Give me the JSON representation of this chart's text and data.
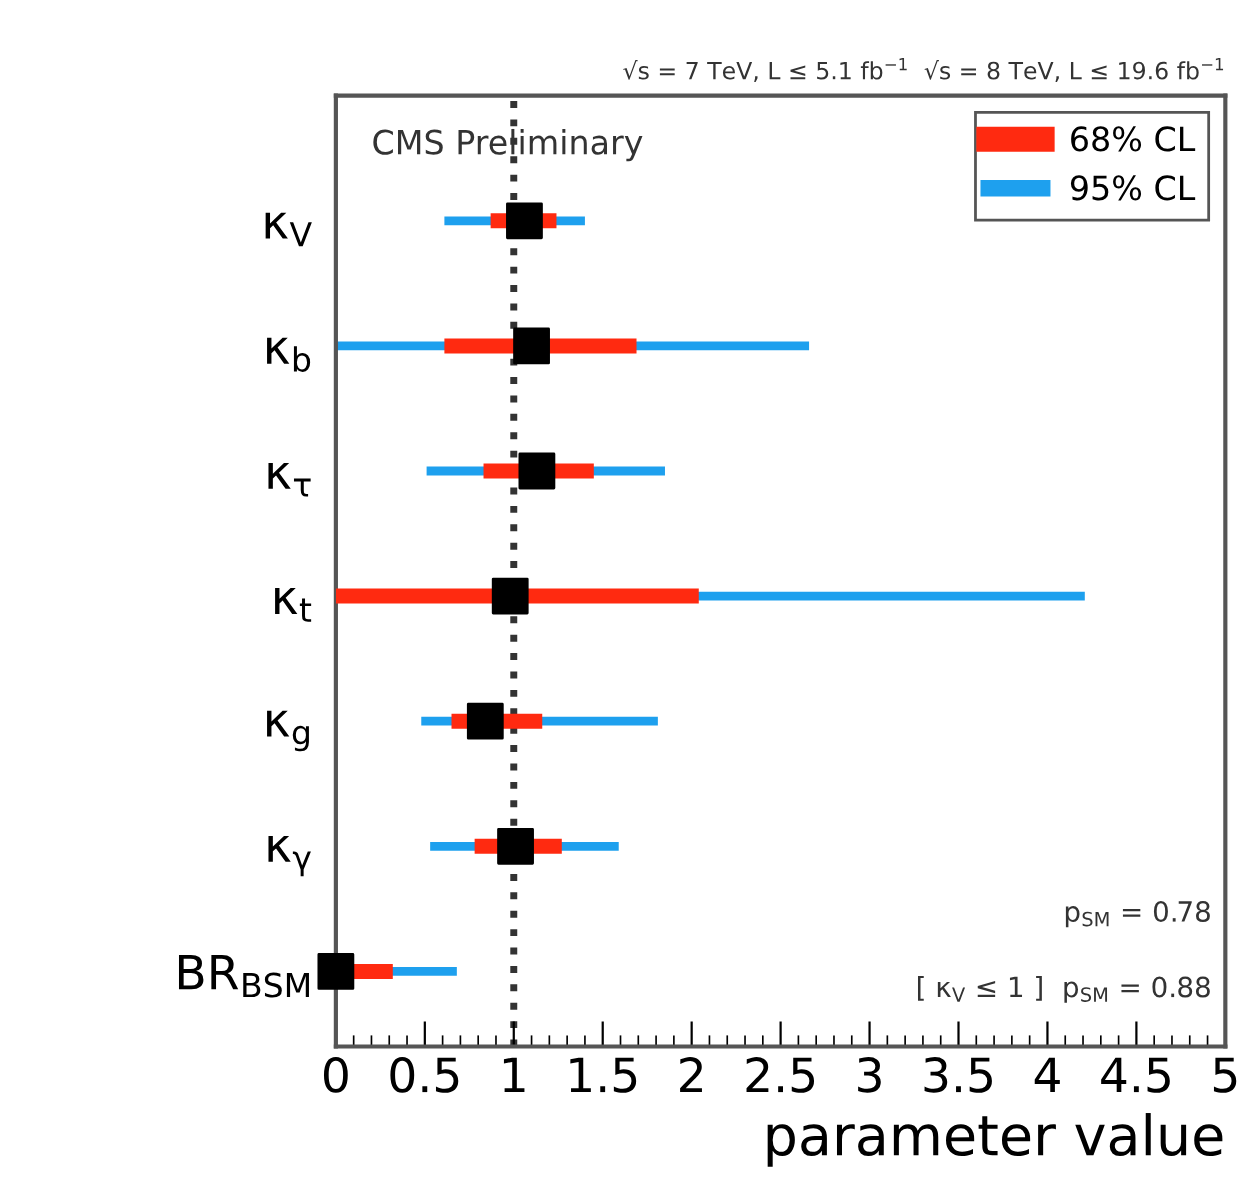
{
  "chart_data": {
    "type": "bar",
    "orientation": "horizontal",
    "categories": [
      "κ$_{V}$",
      "κ$_{b}$",
      "κ$_{τ}$",
      "κ$_{t}$",
      "κ$_{g}$",
      "κ$_{γ}$",
      "BR$_{BSM}$"
    ],
    "series": [
      {
        "name": "95% CL",
        "color": "#1ea0ee",
        "base": [
          0.61,
          0.0,
          0.51,
          0.0,
          0.48,
          0.53,
          0.0
        ],
        "values": [
          0.79,
          2.66,
          1.34,
          4.21,
          1.33,
          1.06,
          0.68
        ]
      },
      {
        "name": "68% CL",
        "color": "#ff2a10",
        "base": [
          0.87,
          0.61,
          0.83,
          0.0,
          0.65,
          0.78,
          0.0
        ],
        "values": [
          0.37,
          1.08,
          0.62,
          2.04,
          0.51,
          0.49,
          0.32
        ]
      },
      {
        "type": "scatter",
        "color": "#000000",
        "marker": "square",
        "values": [
          1.06,
          1.1,
          1.13,
          0.98,
          0.84,
          1.01,
          0.0
        ]
      }
    ],
    "xlim": [
      0,
      5
    ],
    "xticks": [
      0,
      0.5,
      1,
      1.5,
      2,
      2.5,
      3,
      3.5,
      4,
      4.5,
      5
    ],
    "xlabel": "parameter value",
    "ref_lines": [
      {
        "axis": "x",
        "value": 1,
        "label": null,
        "color": "#333333",
        "line_style": "dotted"
      }
    ],
    "annotations": [
      "√s = 7 TeV, L ≤ 5.1 fb$^{−1}$  √s = 8 TeV, L ≤ 19.6 fb$^{−1}$",
      "CMS Preliminary",
      "p$_{SM}$ = 0.78",
      "[ κ$_{V}$ ≤ 1 ]  p$_{SM}$ = 0.88"
    ],
    "legend": "top right",
    "grid": false
  }
}
